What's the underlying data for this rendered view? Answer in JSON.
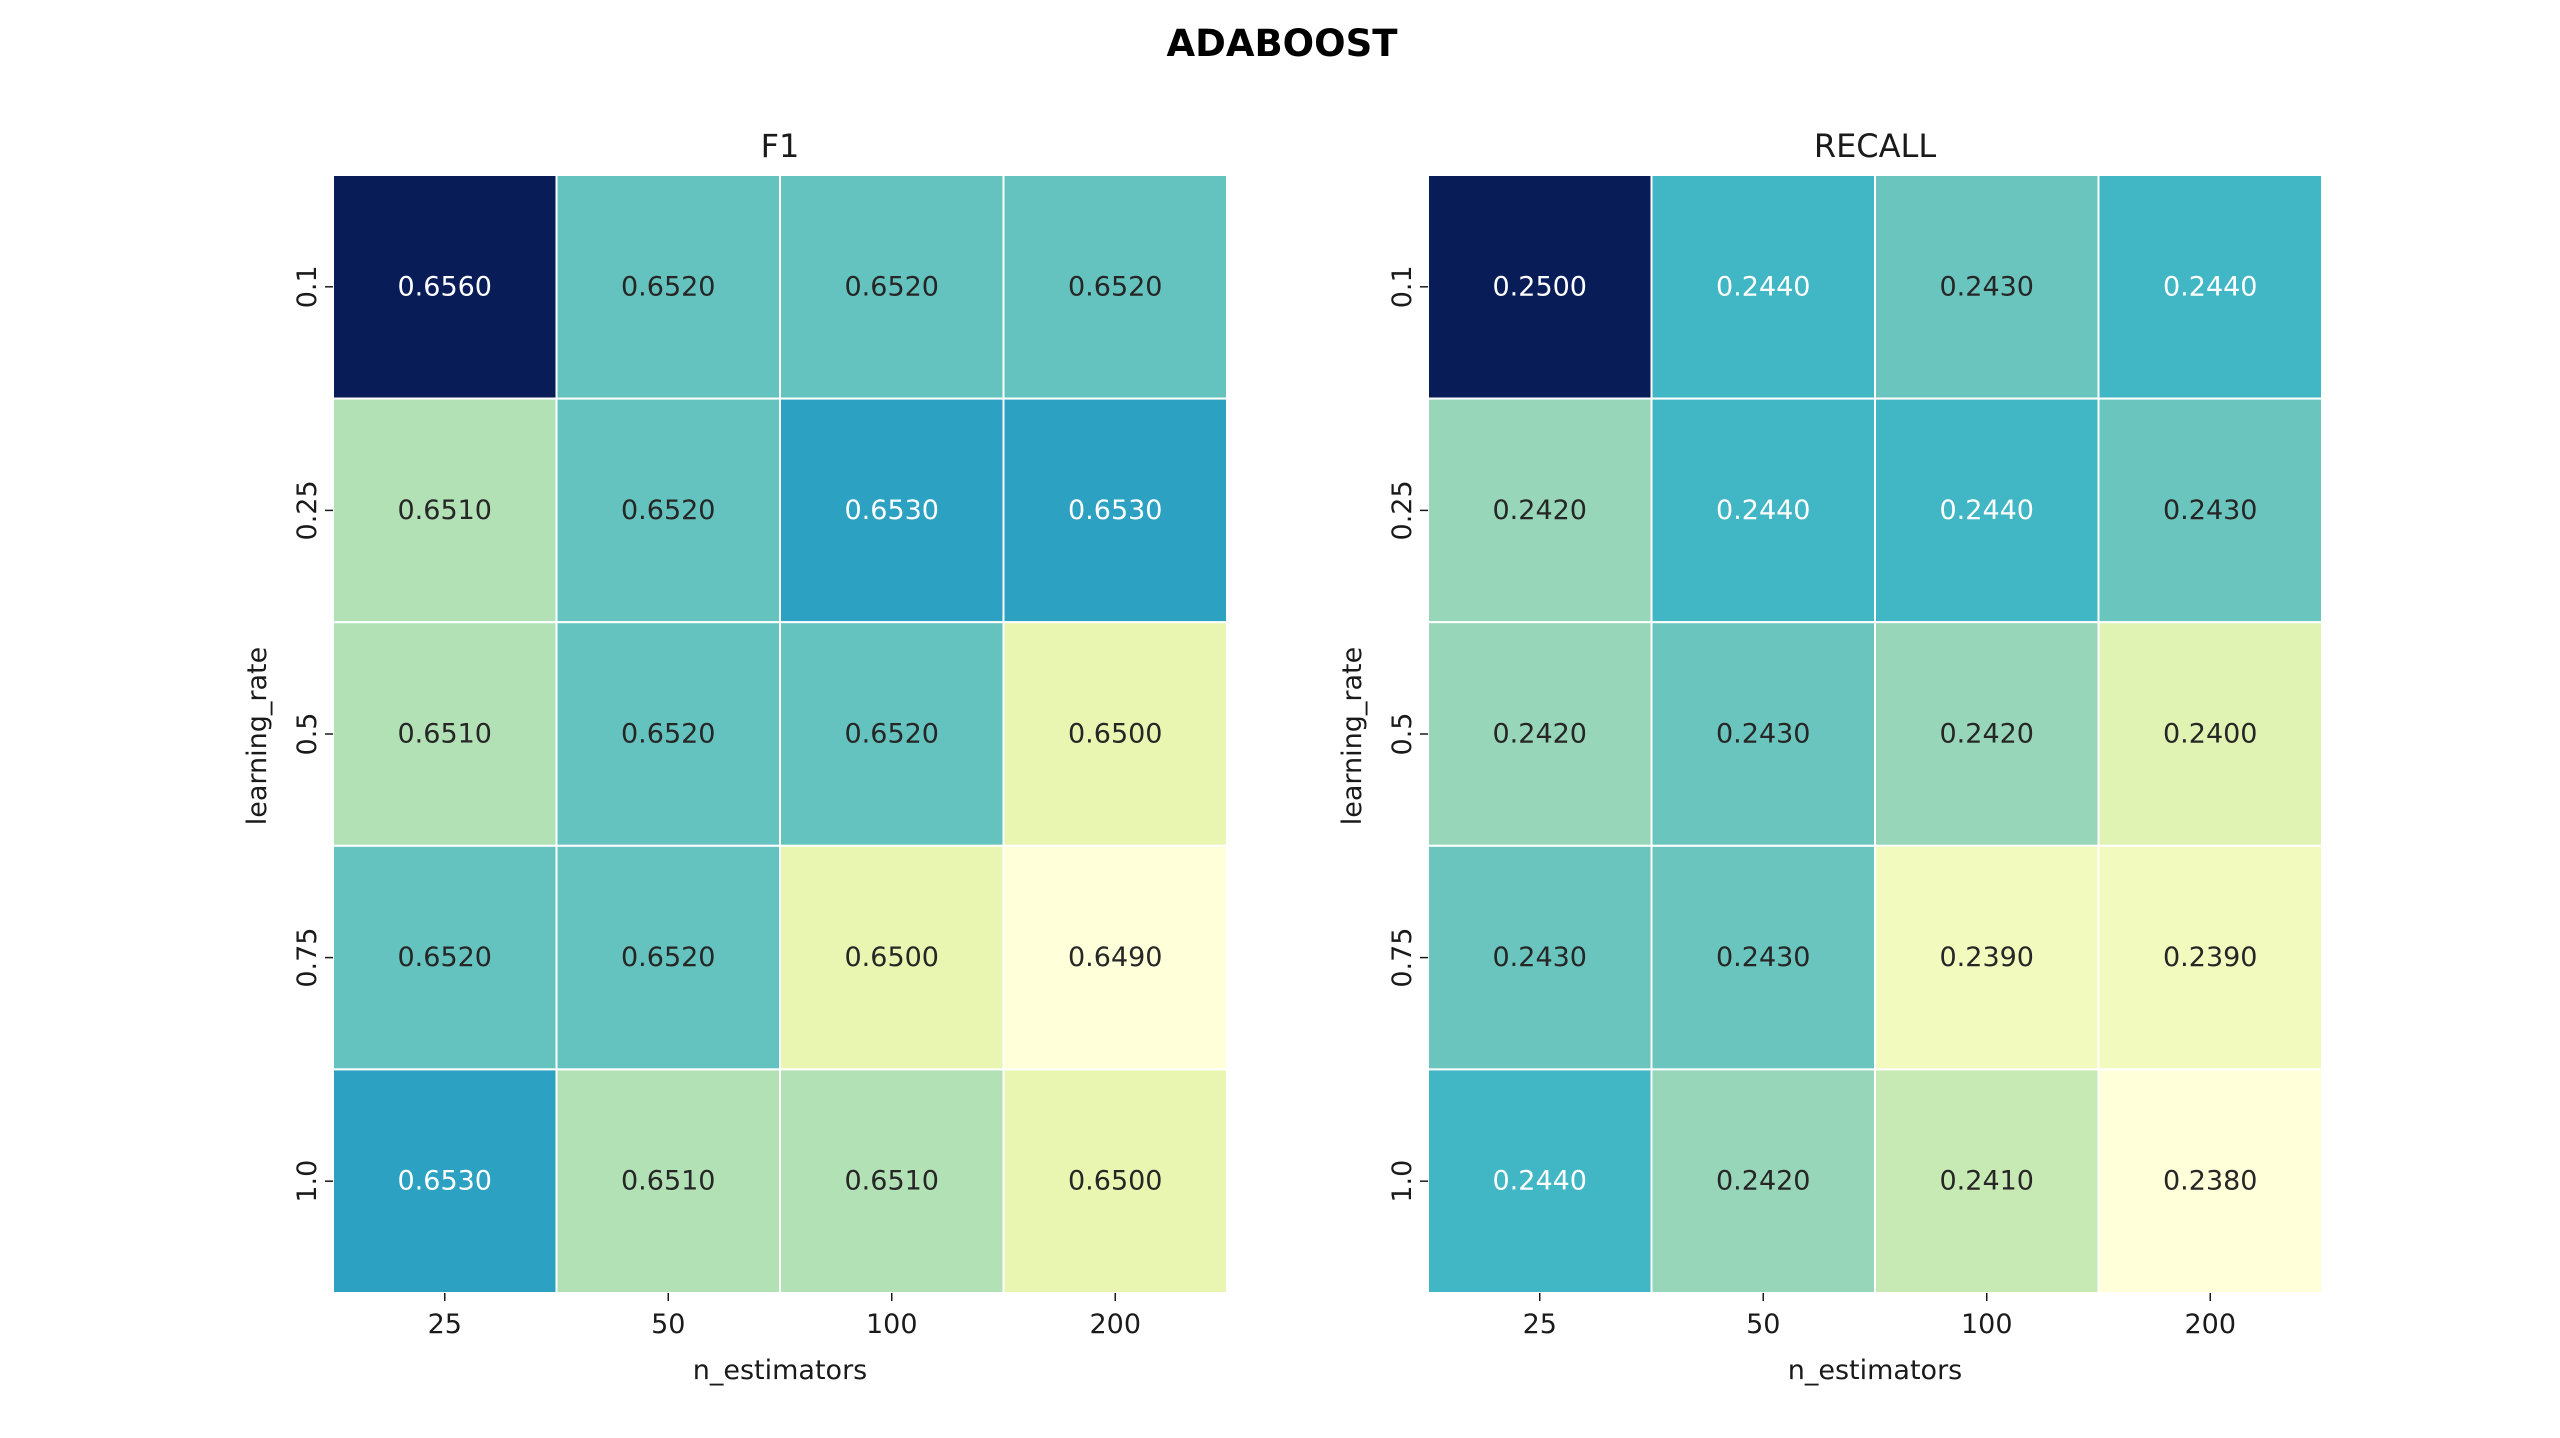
{
  "figure": {
    "title": "ADABOOST"
  },
  "chart_data": [
    {
      "type": "heatmap",
      "title": "F1",
      "xlabel": "n_estimators",
      "ylabel": "learning_rate",
      "x_categories": [
        "25",
        "50",
        "100",
        "200"
      ],
      "y_categories": [
        "0.1",
        "0.25",
        "0.5",
        "0.75",
        "1.0"
      ],
      "values": [
        [
          0.656,
          0.652,
          0.652,
          0.652
        ],
        [
          0.651,
          0.652,
          0.653,
          0.653
        ],
        [
          0.651,
          0.652,
          0.652,
          0.65
        ],
        [
          0.652,
          0.652,
          0.65,
          0.649
        ],
        [
          0.653,
          0.651,
          0.651,
          0.65
        ]
      ],
      "value_format": "0.0000",
      "colormap": "YlGnBu",
      "colorbar": false
    },
    {
      "type": "heatmap",
      "title": "RECALL",
      "xlabel": "n_estimators",
      "ylabel": "learning_rate",
      "x_categories": [
        "25",
        "50",
        "100",
        "200"
      ],
      "y_categories": [
        "0.1",
        "0.25",
        "0.5",
        "0.75",
        "1.0"
      ],
      "values": [
        [
          0.25,
          0.244,
          0.243,
          0.244
        ],
        [
          0.242,
          0.244,
          0.244,
          0.243
        ],
        [
          0.242,
          0.243,
          0.242,
          0.24
        ],
        [
          0.243,
          0.243,
          0.239,
          0.239
        ],
        [
          0.244,
          0.242,
          0.241,
          0.238
        ]
      ],
      "value_format": "0.0000",
      "colormap": "YlGnBu",
      "colorbar": false
    }
  ]
}
